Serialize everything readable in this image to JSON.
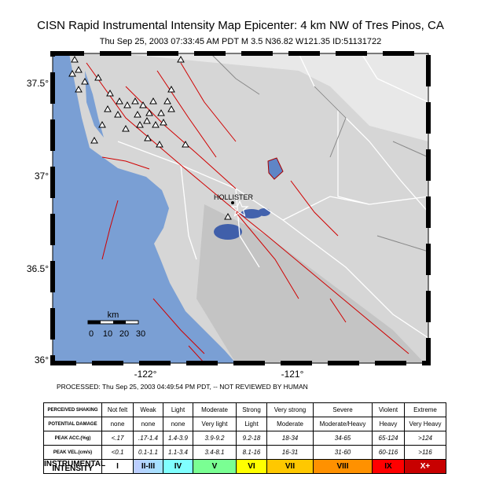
{
  "header": {
    "title": "CISN Rapid Instrumental Intensity Map Epicenter: 4 km NW of Tres Pinos, CA",
    "subtitle": "Thu Sep 25, 2003 07:33:45 AM PDT   M 3.5   N36.82 W121.35   ID:51131722"
  },
  "map": {
    "lat_labels": [
      "37.5°",
      "37°",
      "36.5°",
      "36°"
    ],
    "lon_labels": [
      "-122°",
      "-121°"
    ],
    "place_label": "HOLLISTER",
    "scale": {
      "label": "km",
      "ticks": [
        "0",
        "10",
        "20",
        "30"
      ]
    }
  },
  "footer": {
    "processed": "PROCESSED: Thu Sep 25, 2003 04:49:54 PM PDT, -- NOT REVIEWED BY HUMAN"
  },
  "table": {
    "rows": [
      [
        "PERCEIVED SHAKING",
        "Not felt",
        "Weak",
        "Light",
        "Moderate",
        "Strong",
        "Very strong",
        "Severe",
        "Violent",
        "Extreme"
      ],
      [
        "POTENTIAL DAMAGE",
        "none",
        "none",
        "none",
        "Very light",
        "Light",
        "Moderate",
        "Moderate/Heavy",
        "Heavy",
        "Very Heavy"
      ],
      [
        "PEAK ACC.(%g)",
        "<.17",
        ".17-1.4",
        "1.4-3.9",
        "3.9-9.2",
        "9.2-18",
        "18-34",
        "34-65",
        "65-124",
        ">124"
      ],
      [
        "PEAK VEL.(cm/s)",
        "<0.1",
        "0.1-1.1",
        "1.1-3.4",
        "3.4-8.1",
        "8.1-16",
        "16-31",
        "31-60",
        "60-116",
        ">116"
      ],
      [
        "INSTRUMENTAL INTENSITY",
        "I",
        "II-III",
        "IV",
        "V",
        "VI",
        "VII",
        "VIII",
        "IX",
        "X+"
      ]
    ]
  }
}
